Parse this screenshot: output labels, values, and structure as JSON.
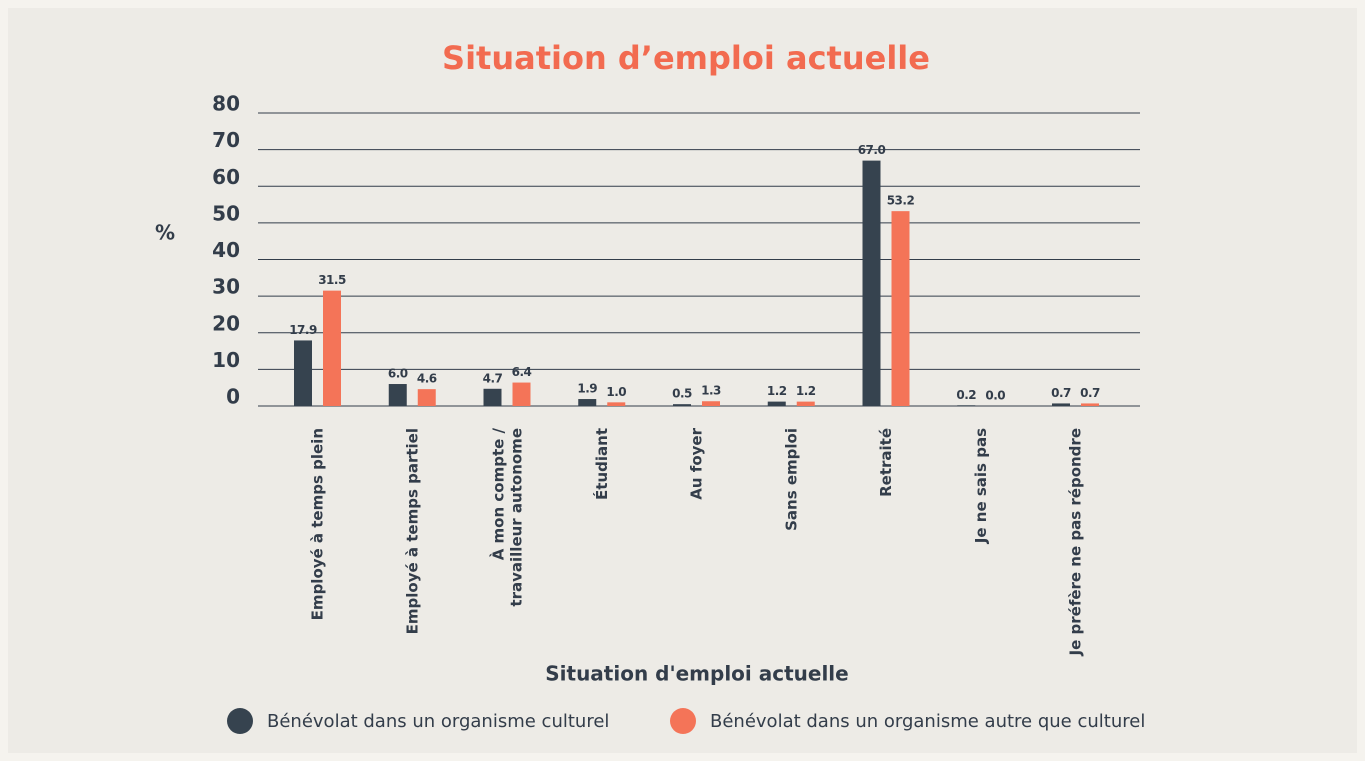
{
  "chart_data": {
    "type": "bar",
    "title": "Situation d’emploi actuelle",
    "y_label": "%",
    "x_label": "Situation d'emploi actuelle",
    "categories": [
      "Employé à temps plein",
      "Employé à temps partiel",
      "À mon compte / travailleur autonome",
      "Étudiant",
      "Au foyer",
      "Sans emploi",
      "Retraité",
      "Je ne sais pas",
      "Je préfère ne pas répondre"
    ],
    "series": [
      {
        "name": "Bénévolat dans un organisme culturel",
        "color": "#36434f",
        "values": [
          17.9,
          6,
          4.7,
          1.9,
          0.5,
          1.2,
          67,
          0.2,
          0.7
        ],
        "value_labels": [
          "17.9",
          "6.0",
          "4.7",
          "1.9",
          "0.5",
          "1.2",
          "67.0",
          "0.2",
          "0.7"
        ]
      },
      {
        "name": "Bénévolat dans un organisme autre que culturel",
        "color": "#f47458",
        "values": [
          31.5,
          4.6,
          6.4,
          1,
          1.3,
          1.2,
          53.2,
          0,
          0.7
        ],
        "value_labels": [
          "31.5",
          "4.6",
          "6.4",
          "1.0",
          "1.3",
          "1.2",
          "53.2",
          "0.0",
          "0.7"
        ]
      }
    ],
    "ylim": [
      0,
      80
    ],
    "yticks": [
      0,
      10,
      20,
      30,
      40,
      50,
      60,
      70,
      80
    ],
    "grid": true,
    "legend": "bottom"
  }
}
